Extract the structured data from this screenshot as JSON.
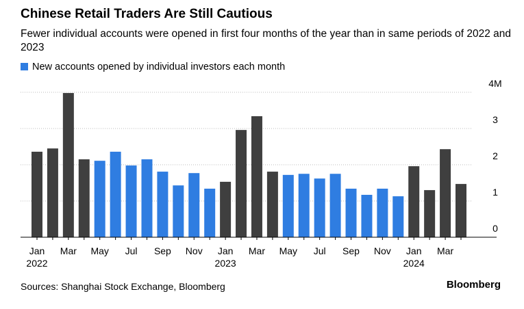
{
  "chart_data": {
    "type": "bar",
    "title": "Chinese Retail Traders Are Still Cautious",
    "subtitle": "Fewer individual accounts were opened in first four months of the year than in same periods of 2022 and 2023",
    "categories": [
      "Jan",
      null,
      "Mar",
      null,
      "May",
      null,
      "Jul",
      null,
      "Sep",
      null,
      "Nov",
      null,
      "Jan",
      null,
      "Mar",
      null,
      "May",
      null,
      "Jul",
      null,
      "Sep",
      null,
      "Nov",
      null,
      "Jan",
      null,
      "Mar",
      null
    ],
    "category_years": [
      "2022",
      null,
      null,
      null,
      null,
      null,
      null,
      null,
      null,
      null,
      null,
      null,
      "2023",
      null,
      null,
      null,
      null,
      null,
      null,
      null,
      null,
      null,
      null,
      null,
      "2024",
      null,
      null,
      null
    ],
    "series": [
      {
        "name": "New accounts opened by individual investors each month",
        "color": "#2f7de1",
        "values": [
          2.36,
          2.45,
          3.98,
          2.15,
          2.11,
          2.36,
          1.98,
          2.15,
          1.81,
          1.43,
          1.77,
          1.34,
          1.53,
          2.96,
          3.34,
          1.81,
          1.72,
          1.75,
          1.62,
          1.75,
          1.34,
          1.17,
          1.34,
          1.13,
          1.96,
          1.3,
          2.43,
          1.47
        ]
      }
    ],
    "bar_colors": [
      "#3f3f3f",
      "#3f3f3f",
      "#3f3f3f",
      "#3f3f3f",
      "#2f7de1",
      "#2f7de1",
      "#2f7de1",
      "#2f7de1",
      "#2f7de1",
      "#2f7de1",
      "#2f7de1",
      "#2f7de1",
      "#3f3f3f",
      "#3f3f3f",
      "#3f3f3f",
      "#3f3f3f",
      "#2f7de1",
      "#2f7de1",
      "#2f7de1",
      "#2f7de1",
      "#2f7de1",
      "#2f7de1",
      "#2f7de1",
      "#2f7de1",
      "#3f3f3f",
      "#3f3f3f",
      "#3f3f3f",
      "#3f3f3f"
    ],
    "ylim": [
      0,
      4
    ],
    "yticks": [
      0,
      1,
      2,
      3,
      {
        "value": 4,
        "label": "4M"
      }
    ],
    "grid": true,
    "source": "Sources: Shanghai Stock Exchange, Bloomberg",
    "brand": "Bloomberg"
  }
}
